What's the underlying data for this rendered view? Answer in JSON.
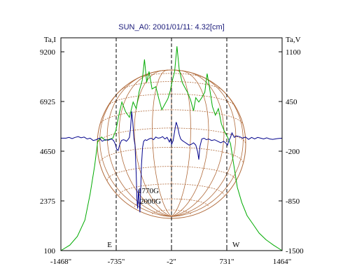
{
  "chart_data": {
    "type": "line",
    "title": "SUN_A0: 2001/01/11: 4.32[cm]",
    "left_axis_label": "Ta,I",
    "right_axis_label": "Ta,V",
    "x_ticks": [
      "-1468\"",
      "-735\"",
      "-2\"",
      "731\"",
      "1464\""
    ],
    "x_tick_values": [
      -1468,
      -735,
      -2,
      731,
      1464
    ],
    "xlim": [
      -1468,
      1464
    ],
    "left_ticks": [
      "9200",
      "6925",
      "4650",
      "2375",
      "100"
    ],
    "left_tick_values": [
      9200,
      6925,
      4650,
      2375,
      100
    ],
    "ylim_left": [
      100,
      9200
    ],
    "right_ticks": [
      "1100",
      "450",
      "-200",
      "-850",
      "-1500"
    ],
    "right_tick_values": [
      1100,
      450,
      -200,
      -850,
      -1500
    ],
    "ylim_right": [
      -1500,
      1100
    ],
    "limb_markers": [
      {
        "label": "E",
        "x": -735
      },
      {
        "label": "",
        "x": -2
      },
      {
        "label": "W",
        "x": 731
      }
    ],
    "annotations": [
      "1770G",
      "2000G"
    ],
    "series": [
      {
        "axis": "left",
        "color": "#00aa00",
        "points": [
          [
            -1468,
            100
          ],
          [
            -1350,
            350
          ],
          [
            -1250,
            750
          ],
          [
            -1150,
            1500
          ],
          [
            -1080,
            2700
          ],
          [
            -1020,
            4000
          ],
          [
            -980,
            5100
          ],
          [
            -930,
            5300
          ],
          [
            -880,
            5150
          ],
          [
            -820,
            5200
          ],
          [
            -780,
            5250
          ],
          [
            -740,
            5600
          ],
          [
            -700,
            6300
          ],
          [
            -660,
            6900
          ],
          [
            -610,
            6450
          ],
          [
            -560,
            6200
          ],
          [
            -510,
            6900
          ],
          [
            -470,
            6600
          ],
          [
            -430,
            7400
          ],
          [
            -390,
            7900
          ],
          [
            -360,
            8850
          ],
          [
            -330,
            7800
          ],
          [
            -300,
            8300
          ],
          [
            -260,
            7500
          ],
          [
            -210,
            7600
          ],
          [
            -170,
            7050
          ],
          [
            -130,
            6550
          ],
          [
            -90,
            6800
          ],
          [
            -50,
            7050
          ],
          [
            -20,
            7400
          ],
          [
            10,
            7900
          ],
          [
            40,
            8300
          ],
          [
            70,
            9450
          ],
          [
            100,
            8400
          ],
          [
            140,
            7800
          ],
          [
            170,
            7600
          ],
          [
            210,
            7350
          ],
          [
            250,
            7000
          ],
          [
            290,
            6500
          ],
          [
            320,
            7100
          ],
          [
            360,
            6900
          ],
          [
            400,
            7100
          ],
          [
            440,
            7350
          ],
          [
            470,
            8200
          ],
          [
            500,
            7600
          ],
          [
            540,
            6700
          ],
          [
            580,
            6300
          ],
          [
            620,
            6600
          ],
          [
            660,
            5900
          ],
          [
            700,
            5550
          ],
          [
            740,
            5300
          ],
          [
            780,
            5000
          ],
          [
            820,
            4100
          ],
          [
            870,
            3000
          ],
          [
            930,
            2300
          ],
          [
            1000,
            1700
          ],
          [
            1080,
            1300
          ],
          [
            1160,
            900
          ],
          [
            1250,
            600
          ],
          [
            1350,
            350
          ],
          [
            1464,
            100
          ]
        ]
      },
      {
        "axis": "right",
        "color": "#00008b",
        "points": [
          [
            -1468,
            -30
          ],
          [
            -1400,
            -30
          ],
          [
            -1360,
            -20
          ],
          [
            -1320,
            -35
          ],
          [
            -1280,
            -20
          ],
          [
            -1240,
            -10
          ],
          [
            -1200,
            -25
          ],
          [
            -1160,
            -15
          ],
          [
            -1120,
            -40
          ],
          [
            -1080,
            -30
          ],
          [
            -1040,
            -60
          ],
          [
            -1000,
            -50
          ],
          [
            -960,
            -30
          ],
          [
            -920,
            -70
          ],
          [
            -880,
            -50
          ],
          [
            -840,
            -55
          ],
          [
            -800,
            -40
          ],
          [
            -770,
            -60
          ],
          [
            -745,
            -110
          ],
          [
            -730,
            -170
          ],
          [
            -710,
            -190
          ],
          [
            -690,
            -120
          ],
          [
            -665,
            -60
          ],
          [
            -640,
            -50
          ],
          [
            -620,
            -55
          ],
          [
            -600,
            -70
          ],
          [
            -580,
            -50
          ],
          [
            -560,
            -20
          ],
          [
            -545,
            100
          ],
          [
            -530,
            320
          ],
          [
            -515,
            180
          ],
          [
            -500,
            -30
          ],
          [
            -485,
            -120
          ],
          [
            -470,
            -500
          ],
          [
            -460,
            -820
          ],
          [
            -450,
            -950
          ],
          [
            -440,
            -700
          ],
          [
            -430,
            -850
          ],
          [
            -420,
            -1000
          ],
          [
            -410,
            -700
          ],
          [
            -400,
            -380
          ],
          [
            -385,
            -150
          ],
          [
            -370,
            -70
          ],
          [
            -350,
            -50
          ],
          [
            -330,
            -60
          ],
          [
            -300,
            -40
          ],
          [
            -270,
            -30
          ],
          [
            -240,
            -50
          ],
          [
            -210,
            -15
          ],
          [
            -180,
            -30
          ],
          [
            -150,
            -25
          ],
          [
            -120,
            -10
          ],
          [
            -90,
            -40
          ],
          [
            -60,
            -20
          ],
          [
            -30,
            -80
          ],
          [
            -15,
            -40
          ],
          [
            0,
            -110
          ],
          [
            20,
            -60
          ],
          [
            40,
            60
          ],
          [
            60,
            180
          ],
          [
            80,
            120
          ],
          [
            100,
            20
          ],
          [
            120,
            -40
          ],
          [
            140,
            -60
          ],
          [
            170,
            -80
          ],
          [
            200,
            -100
          ],
          [
            230,
            -120
          ],
          [
            260,
            -110
          ],
          [
            290,
            -90
          ],
          [
            320,
            -120
          ],
          [
            345,
            -210
          ],
          [
            360,
            -310
          ],
          [
            375,
            -140
          ],
          [
            400,
            -40
          ],
          [
            430,
            -30
          ],
          [
            460,
            -50
          ],
          [
            490,
            -40
          ],
          [
            530,
            -60
          ],
          [
            570,
            -50
          ],
          [
            610,
            -70
          ],
          [
            650,
            -90
          ],
          [
            690,
            -70
          ],
          [
            725,
            -100
          ],
          [
            740,
            -120
          ],
          [
            760,
            -60
          ],
          [
            780,
            -20
          ],
          [
            800,
            40
          ],
          [
            830,
            -20
          ],
          [
            860,
            0
          ],
          [
            900,
            -10
          ],
          [
            940,
            -30
          ],
          [
            980,
            -15
          ],
          [
            1020,
            -45
          ],
          [
            1060,
            -20
          ],
          [
            1100,
            -40
          ],
          [
            1140,
            -20
          ],
          [
            1180,
            -30
          ],
          [
            1220,
            -40
          ],
          [
            1260,
            -25
          ],
          [
            1300,
            -40
          ],
          [
            1340,
            -45
          ],
          [
            1400,
            -35
          ],
          [
            1464,
            -30
          ]
        ]
      }
    ]
  }
}
